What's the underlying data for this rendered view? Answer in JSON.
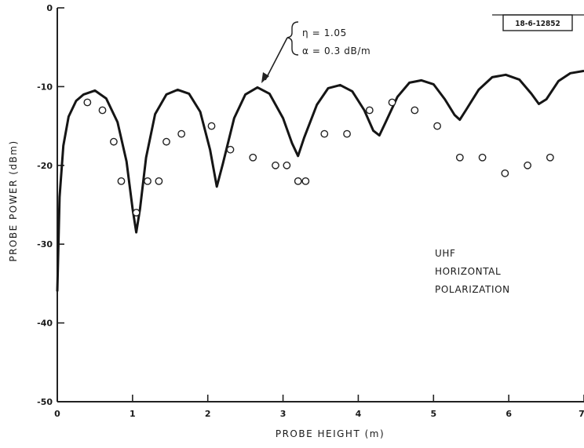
{
  "figure_id": "18-6-12852",
  "chart_data": {
    "type": "line",
    "title": "",
    "xlabel": "PROBE HEIGHT (m)",
    "ylabel": "PROBE POWER (dBm)",
    "xlim": [
      0,
      7
    ],
    "ylim": [
      -50,
      0
    ],
    "x_ticks": [
      "0",
      "1",
      "2",
      "3",
      "4",
      "5",
      "6",
      "7"
    ],
    "y_ticks": [
      "0",
      "-10",
      "-20",
      "-30",
      "-40",
      "-50"
    ],
    "grid": false,
    "annotations": {
      "params": [
        "η = 1.05",
        "α = 0.3 dB/m"
      ],
      "mode": [
        "UHF",
        "HORIZONTAL",
        "POLARIZATION"
      ]
    },
    "series": [
      {
        "kind": "line",
        "x": [
          0.0,
          0.03,
          0.08,
          0.15,
          0.25,
          0.35,
          0.5,
          0.65,
          0.8,
          0.92,
          1.0,
          1.05,
          1.1,
          1.18,
          1.3,
          1.45,
          1.6,
          1.75,
          1.9,
          2.03,
          2.12,
          2.2,
          2.35,
          2.5,
          2.66,
          2.82,
          3.0,
          3.12,
          3.2,
          3.28,
          3.45,
          3.6,
          3.76,
          3.92,
          4.08,
          4.2,
          4.28,
          4.36,
          4.52,
          4.68,
          4.84,
          5.0,
          5.15,
          5.28,
          5.35,
          5.43,
          5.6,
          5.78,
          5.96,
          6.14,
          6.3,
          6.4,
          6.5,
          6.66,
          6.82,
          7.0
        ],
        "y": [
          -36.0,
          -24.0,
          -17.5,
          -13.8,
          -11.8,
          -11.0,
          -10.5,
          -11.5,
          -14.5,
          -19.5,
          -25.5,
          -28.5,
          -25.5,
          -19.0,
          -13.5,
          -11.0,
          -10.4,
          -10.9,
          -13.2,
          -18.0,
          -22.7,
          -19.8,
          -14.0,
          -11.0,
          -10.1,
          -10.9,
          -14.0,
          -17.2,
          -18.8,
          -16.5,
          -12.3,
          -10.2,
          -9.8,
          -10.6,
          -13.0,
          -15.6,
          -16.2,
          -14.6,
          -11.3,
          -9.5,
          -9.2,
          -9.7,
          -11.6,
          -13.6,
          -14.2,
          -13.0,
          -10.4,
          -8.8,
          -8.5,
          -9.1,
          -10.9,
          -12.2,
          -11.6,
          -9.3,
          -8.3,
          -8.0
        ]
      },
      {
        "kind": "scatter",
        "x": [
          0.4,
          0.6,
          0.75,
          0.85,
          1.05,
          1.2,
          1.35,
          1.45,
          1.65,
          2.05,
          2.3,
          2.6,
          2.9,
          3.05,
          3.2,
          3.3,
          3.55,
          3.85,
          4.15,
          4.45,
          4.75,
          5.05,
          5.35,
          5.65,
          5.95,
          6.25,
          6.55
        ],
        "y": [
          -12,
          -13,
          -17,
          -22,
          -26,
          -22,
          -22,
          -17,
          -16,
          -15,
          -18,
          -19,
          -20,
          -20,
          -22,
          -22,
          -16,
          -16,
          -13,
          -12,
          -13,
          -15,
          -19,
          -19,
          -21,
          -20,
          -19
        ]
      }
    ]
  }
}
